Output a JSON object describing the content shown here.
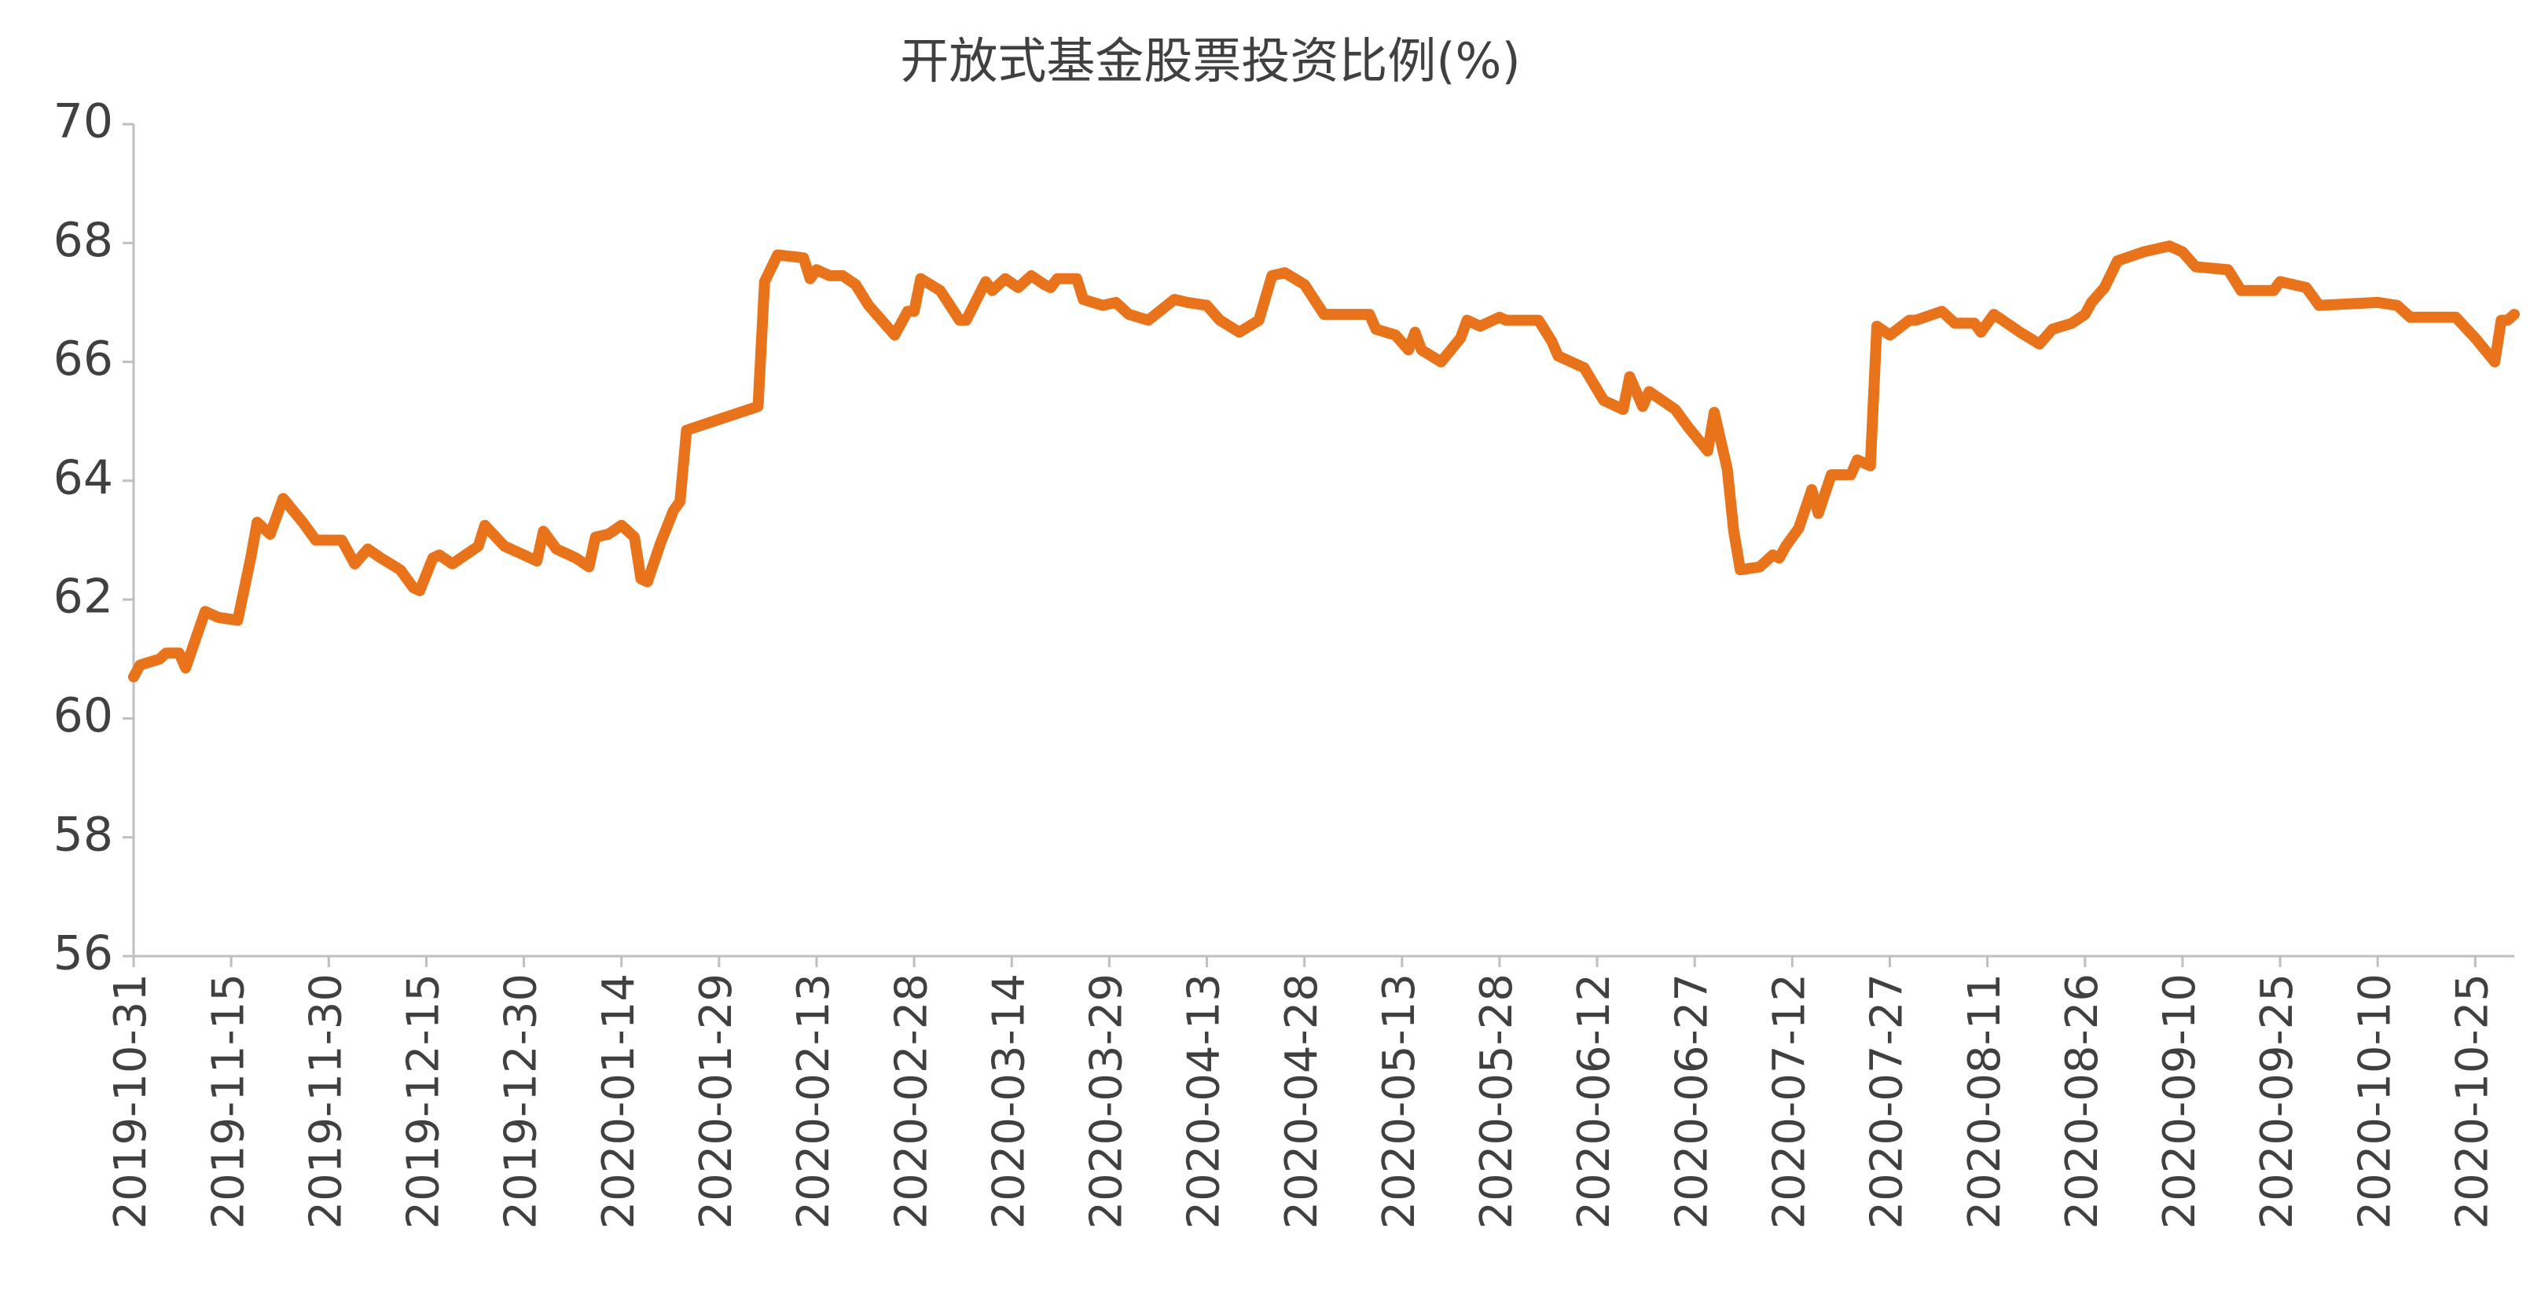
{
  "chart_data": {
    "type": "line",
    "title": "开放式基金股票投资比例(%)",
    "x": [
      "2019-10-31",
      "2019-11-01",
      "2019-11-04",
      "2019-11-05",
      "2019-11-07",
      "2019-11-08",
      "2019-11-11",
      "2019-11-13",
      "2019-11-16",
      "2019-11-18",
      "2019-11-19",
      "2019-11-21",
      "2019-11-23",
      "2019-11-26",
      "2019-11-28",
      "2019-12-02",
      "2019-12-04",
      "2019-12-06",
      "2019-12-08",
      "2019-12-11",
      "2019-12-13",
      "2019-12-14",
      "2019-12-16",
      "2019-12-17",
      "2019-12-19",
      "2019-12-23",
      "2019-12-24",
      "2019-12-27",
      "2019-12-30",
      "2020-01-01",
      "2020-01-02",
      "2020-01-04",
      "2020-01-07",
      "2020-01-09",
      "2020-01-10",
      "2020-01-12",
      "2020-01-14",
      "2020-01-16",
      "2020-01-17",
      "2020-01-18",
      "2020-01-20",
      "2020-01-22",
      "2020-01-23",
      "2020-01-24",
      "2020-02-04",
      "2020-02-05",
      "2020-02-07",
      "2020-02-11",
      "2020-02-12",
      "2020-02-13",
      "2020-02-15",
      "2020-02-17",
      "2020-02-19",
      "2020-02-21",
      "2020-02-25",
      "2020-02-27",
      "2020-02-28",
      "2020-02-29",
      "2020-03-03",
      "2020-03-06",
      "2020-03-07",
      "2020-03-10",
      "2020-03-11",
      "2020-03-13",
      "2020-03-15",
      "2020-03-17",
      "2020-03-19",
      "2020-03-20",
      "2020-03-21",
      "2020-03-24",
      "2020-03-25",
      "2020-03-28",
      "2020-03-30",
      "2020-04-01",
      "2020-04-04",
      "2020-04-08",
      "2020-04-10",
      "2020-04-13",
      "2020-04-15",
      "2020-04-18",
      "2020-04-21",
      "2020-04-23",
      "2020-04-25",
      "2020-04-28",
      "2020-05-01",
      "2020-05-08",
      "2020-05-09",
      "2020-05-12",
      "2020-05-14",
      "2020-05-15",
      "2020-05-16",
      "2020-05-19",
      "2020-05-22",
      "2020-05-23",
      "2020-05-25",
      "2020-05-28",
      "2020-05-29",
      "2020-06-03",
      "2020-06-05",
      "2020-06-06",
      "2020-06-10",
      "2020-06-13",
      "2020-06-16",
      "2020-06-17",
      "2020-06-19",
      "2020-06-20",
      "2020-06-24",
      "2020-06-26",
      "2020-06-29",
      "2020-06-30",
      "2020-07-02",
      "2020-07-03",
      "2020-07-04",
      "2020-07-07",
      "2020-07-09",
      "2020-07-10",
      "2020-07-11",
      "2020-07-13",
      "2020-07-15",
      "2020-07-16",
      "2020-07-18",
      "2020-07-21",
      "2020-07-22",
      "2020-07-24",
      "2020-07-25",
      "2020-07-27",
      "2020-07-30",
      "2020-07-31",
      "2020-08-04",
      "2020-08-06",
      "2020-08-09",
      "2020-08-10",
      "2020-08-12",
      "2020-08-14",
      "2020-08-16",
      "2020-08-19",
      "2020-08-21",
      "2020-08-24",
      "2020-08-26",
      "2020-08-27",
      "2020-08-29",
      "2020-08-31",
      "2020-09-04",
      "2020-09-08",
      "2020-09-10",
      "2020-09-12",
      "2020-09-17",
      "2020-09-19",
      "2020-09-24",
      "2020-09-25",
      "2020-09-29",
      "2020-10-01",
      "2020-10-10",
      "2020-10-13",
      "2020-10-15",
      "2020-10-22",
      "2020-10-25",
      "2020-10-28",
      "2020-10-29",
      "2020-10-30",
      "2020-10-31"
    ],
    "values": [
      60.7,
      60.9,
      61.0,
      61.1,
      61.1,
      60.85,
      61.8,
      61.7,
      61.65,
      62.7,
      63.3,
      63.1,
      63.7,
      63.3,
      63.0,
      63.0,
      62.6,
      62.85,
      62.7,
      62.5,
      62.2,
      62.15,
      62.7,
      62.75,
      62.6,
      62.9,
      63.25,
      62.9,
      62.75,
      62.65,
      63.15,
      62.85,
      62.7,
      62.55,
      63.05,
      63.1,
      63.25,
      63.05,
      62.35,
      62.3,
      62.95,
      63.5,
      63.65,
      64.85,
      65.25,
      67.35,
      67.8,
      67.75,
      67.4,
      67.55,
      67.45,
      67.45,
      67.3,
      66.95,
      66.45,
      66.85,
      66.85,
      67.4,
      67.2,
      66.7,
      66.7,
      67.35,
      67.2,
      67.4,
      67.25,
      67.45,
      67.3,
      67.25,
      67.4,
      67.4,
      67.05,
      66.95,
      67.0,
      66.8,
      66.7,
      67.05,
      67.0,
      66.95,
      66.7,
      66.5,
      66.7,
      67.45,
      67.5,
      67.3,
      66.8,
      66.8,
      66.55,
      66.45,
      66.2,
      66.5,
      66.2,
      66.0,
      66.4,
      66.7,
      66.6,
      66.75,
      66.7,
      66.7,
      66.35,
      66.1,
      65.9,
      65.35,
      65.2,
      65.75,
      65.25,
      65.5,
      65.2,
      64.9,
      64.5,
      65.15,
      64.2,
      63.15,
      62.5,
      62.55,
      62.75,
      62.7,
      62.9,
      63.2,
      63.85,
      63.45,
      64.1,
      64.1,
      64.35,
      64.25,
      66.6,
      66.45,
      66.7,
      66.7,
      66.85,
      66.65,
      66.65,
      66.5,
      66.8,
      66.65,
      66.5,
      66.3,
      66.55,
      66.65,
      66.8,
      67.0,
      67.25,
      67.7,
      67.85,
      67.95,
      67.85,
      67.6,
      67.55,
      67.2,
      67.2,
      67.35,
      67.25,
      66.95,
      67.0,
      66.95,
      66.75,
      66.75,
      66.4,
      66.0,
      66.7,
      66.7,
      66.8
    ],
    "color": "#e8731a",
    "xlim": [
      "2019-10-31",
      "2020-10-31"
    ],
    "xticks": [
      "2019-10-31",
      "2019-11-15",
      "2019-11-30",
      "2019-12-15",
      "2019-12-30",
      "2020-01-14",
      "2020-01-29",
      "2020-02-13",
      "2020-02-28",
      "2020-03-14",
      "2020-03-29",
      "2020-04-13",
      "2020-04-28",
      "2020-05-13",
      "2020-05-28",
      "2020-06-12",
      "2020-06-27",
      "2020-07-12",
      "2020-07-27",
      "2020-08-11",
      "2020-08-26",
      "2020-09-10",
      "2020-09-25",
      "2020-10-10",
      "2020-10-25"
    ],
    "ylim": [
      56,
      70
    ],
    "yticks": [
      56,
      58,
      60,
      62,
      64,
      66,
      68,
      70
    ],
    "grid": false
  }
}
